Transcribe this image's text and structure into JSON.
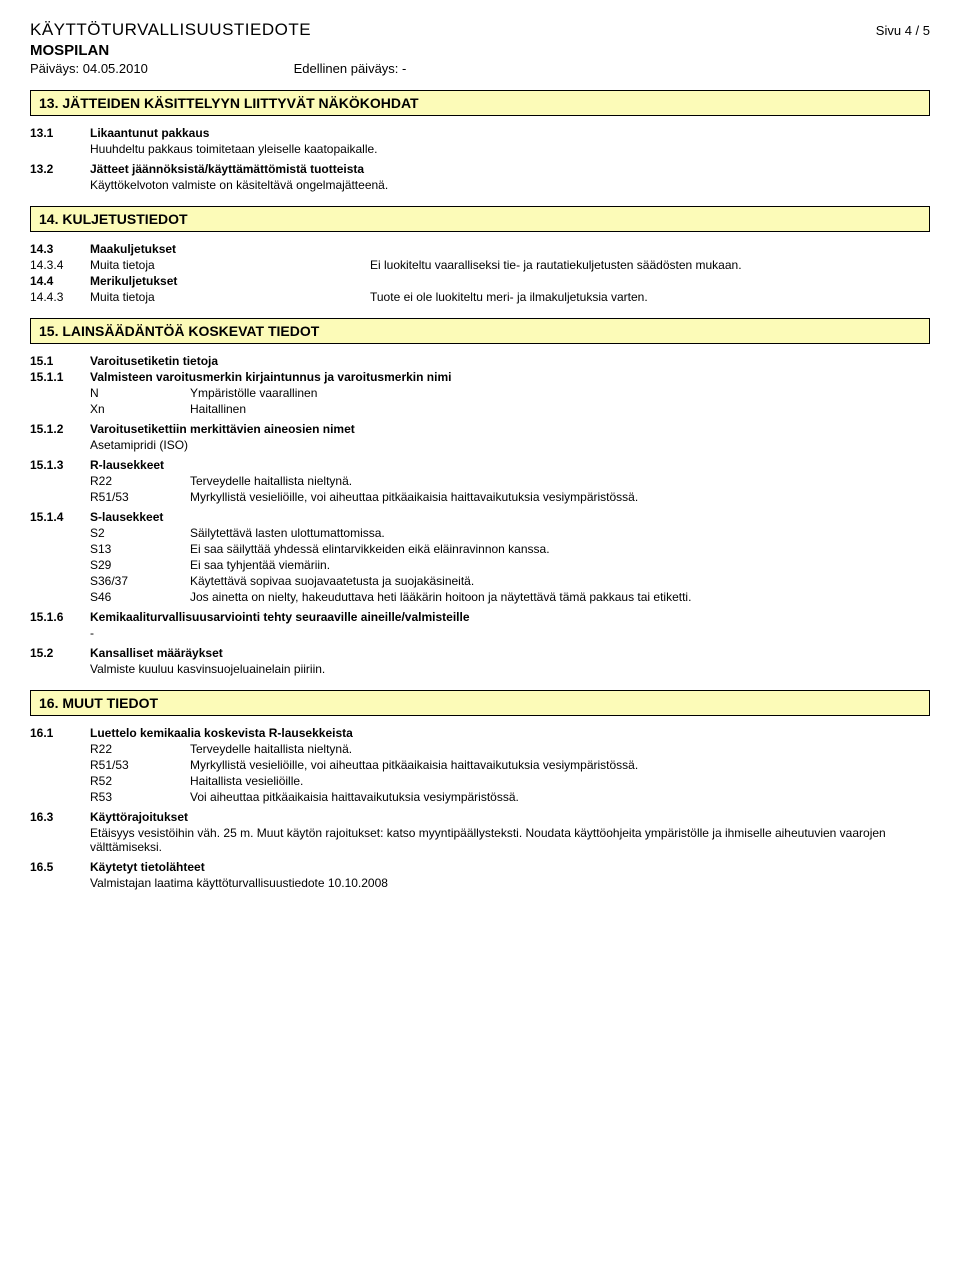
{
  "header": {
    "title": "KÄYTTÖTURVALLISUUSTIEDOTE",
    "page": "Sivu  4 / 5",
    "subtitle": "MOSPILAN",
    "date_label": "Päiväys: 04.05.2010",
    "prev_date": "Edellinen päiväys: -"
  },
  "s13": {
    "title": "13. JÄTTEIDEN KÄSITTELYYN LIITTYVÄT NÄKÖKOHDAT",
    "r1_num": "13.1",
    "r1_label": "Likaantunut pakkaus",
    "r1_text": "Huuhdeltu pakkaus toimitetaan yleiselle kaatopaikalle.",
    "r2_num": "13.2",
    "r2_label": "Jätteet jäännöksistä/käyttämättömistä tuotteista",
    "r2_text": "Käyttökelvoton valmiste on käsiteltävä ongelmajätteenä."
  },
  "s14": {
    "title": "14. KULJETUSTIEDOT",
    "r1_num": "14.3",
    "r1_label": "Maakuljetukset",
    "r2_num": "14.3.4",
    "r2_label": "Muita tietoja",
    "r2_val": "Ei luokiteltu vaaralliseksi tie- ja rautatiekuljetusten säädösten mukaan.",
    "r3_num": "14.4",
    "r3_label": "Merikuljetukset",
    "r4_num": "14.4.3",
    "r4_label": "Muita tietoja",
    "r4_val": "Tuote ei ole luokiteltu meri- ja ilmakuljetuksia varten."
  },
  "s15": {
    "title": "15. LAINSÄÄDÄNTÖÄ KOSKEVAT TIEDOT",
    "r1_num": "15.1",
    "r1_label": "Varoitusetiketin tietoja",
    "r11_num": "15.1.1",
    "r11_label": "Valmisteen varoitusmerkin kirjaintunnus ja varoitusmerkin nimi",
    "r11_kv": [
      {
        "k": "N",
        "v": "Ympäristölle vaarallinen"
      },
      {
        "k": "Xn",
        "v": "Haitallinen"
      }
    ],
    "r12_num": "15.1.2",
    "r12_label": "Varoitusetikettiin merkittävien aineosien nimet",
    "r12_text": "Asetamipridi (ISO)",
    "r13_num": "15.1.3",
    "r13_label": "R-lausekkeet",
    "r13_kv": [
      {
        "k": "R22",
        "v": "Terveydelle haitallista nieltynä."
      },
      {
        "k": "R51/53",
        "v": "Myrkyllistä vesieliöille, voi aiheuttaa pitkäaikaisia haittavaikutuksia vesiympäristössä."
      }
    ],
    "r14_num": "15.1.4",
    "r14_label": "S-lausekkeet",
    "r14_kv": [
      {
        "k": "S2",
        "v": "Säilytettävä lasten ulottumattomissa."
      },
      {
        "k": "S13",
        "v": "Ei saa säilyttää yhdessä elintarvikkeiden eikä eläinravinnon kanssa."
      },
      {
        "k": "S29",
        "v": "Ei saa tyhjentää viemäriin."
      },
      {
        "k": "S36/37",
        "v": "Käytettävä sopivaa suojavaatetusta ja suojakäsineitä."
      },
      {
        "k": "S46",
        "v": "Jos ainetta on nielty, hakeuduttava heti lääkärin hoitoon ja näytettävä tämä pakkaus tai etiketti."
      }
    ],
    "r16_num": "15.1.6",
    "r16_label": "Kemikaaliturvallisuusarviointi tehty seuraaville aineille/valmisteille",
    "r16_text": "-",
    "r2_num": "15.2",
    "r2_label": "Kansalliset määräykset",
    "r2_text": "Valmiste kuuluu kasvinsuojeluainelain piiriin."
  },
  "s16": {
    "title": "16. MUUT TIEDOT",
    "r1_num": "16.1",
    "r1_label": "Luettelo kemikaalia koskevista R-lausekkeista",
    "r1_kv": [
      {
        "k": "R22",
        "v": "Terveydelle haitallista nieltynä."
      },
      {
        "k": "R51/53",
        "v": "Myrkyllistä vesieliöille, voi aiheuttaa pitkäaikaisia haittavaikutuksia vesiympäristössä."
      },
      {
        "k": "R52",
        "v": "Haitallista vesieliöille."
      },
      {
        "k": "R53",
        "v": "Voi aiheuttaa pitkäaikaisia haittavaikutuksia vesiympäristössä."
      }
    ],
    "r3_num": "16.3",
    "r3_label": "Käyttörajoitukset",
    "r3_text": "Etäisyys vesistöihin väh. 25 m. Muut käytön rajoitukset: katso myyntipäällysteksti. Noudata käyttöohjeita ympäristölle ja ihmiselle aiheutuvien vaarojen välttämiseksi.",
    "r5_num": "16.5",
    "r5_label": "Käytetyt tietolähteet",
    "r5_text": "Valmistajan laatima käyttöturvallisuustiedote  10.10.2008"
  }
}
